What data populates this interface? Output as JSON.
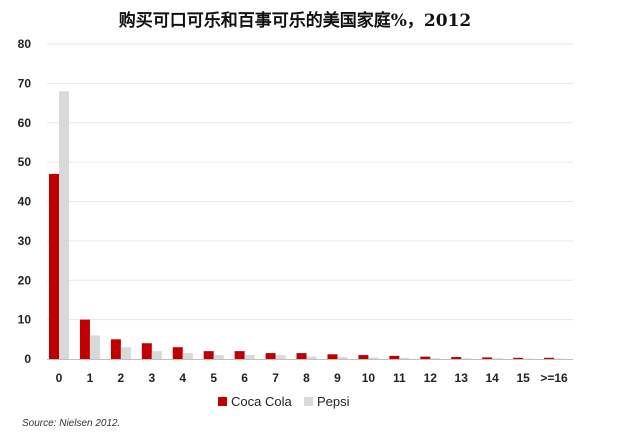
{
  "chart_data": {
    "type": "bar",
    "title": "购买可口可乐和百事可乐的美国家庭%，2012",
    "categories": [
      "0",
      "1",
      "2",
      "3",
      "4",
      "5",
      "6",
      "7",
      "8",
      "9",
      "10",
      "11",
      "12",
      "13",
      "14",
      "15",
      ">=16"
    ],
    "series": [
      {
        "name": "Coca Cola",
        "color": "#c00000",
        "values": [
          47,
          10,
          5,
          4,
          3,
          2,
          2,
          1.5,
          1.5,
          1.2,
          1,
          0.8,
          0.6,
          0.5,
          0.4,
          0.3,
          0.3
        ]
      },
      {
        "name": "Pepsi",
        "color": "#d9d9d9",
        "values": [
          68,
          6,
          3,
          2,
          1.5,
          1,
          1,
          1,
          0.6,
          0.5,
          0.4,
          0.3,
          0.2,
          0.2,
          0.2,
          0.1,
          0.1
        ]
      }
    ],
    "ylim": [
      0,
      80
    ],
    "yticks": [
      "0",
      "10",
      "20",
      "30",
      "40",
      "50",
      "60",
      "70",
      "80"
    ],
    "grid": true,
    "legend_position": "bottom-center",
    "source": "Source: Nielsen 2012."
  }
}
